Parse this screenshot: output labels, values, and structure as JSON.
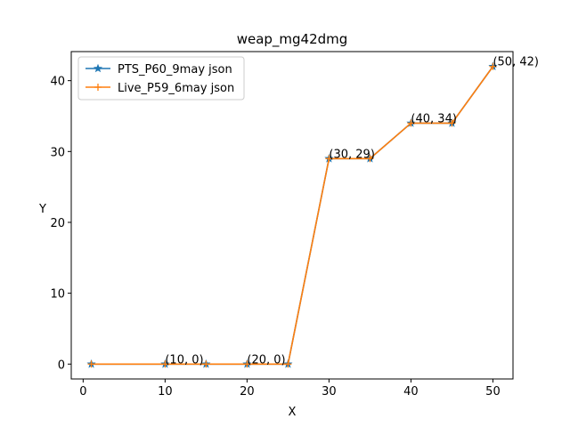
{
  "chart_data": {
    "type": "line",
    "title": "weap_mg42dmg",
    "xlabel": "X",
    "ylabel": "Y",
    "xlim": [
      -1.45,
      52.45
    ],
    "ylim": [
      -2.1,
      44.1
    ],
    "xticks": [
      0,
      10,
      20,
      30,
      40,
      50
    ],
    "yticks": [
      0,
      10,
      20,
      30,
      40
    ],
    "grid": false,
    "legend_position": "top-left",
    "series": [
      {
        "name": "PTS_P60_9may json",
        "color": "#1f77b4",
        "marker": "star",
        "x": [
          1,
          10,
          15,
          20,
          25,
          30,
          35,
          40,
          45,
          50
        ],
        "y": [
          0,
          0,
          0,
          0,
          0,
          29,
          29,
          34,
          34,
          42
        ]
      },
      {
        "name": "Live_P59_6may json",
        "color": "#ff7f0e",
        "marker": "plus",
        "x": [
          1,
          10,
          15,
          20,
          25,
          30,
          35,
          40,
          45,
          50
        ],
        "y": [
          0,
          0,
          0,
          0,
          0,
          29,
          29,
          34,
          34,
          42
        ]
      }
    ],
    "annotations": [
      {
        "x": 10,
        "y": 0,
        "text": "(10, 0)"
      },
      {
        "x": 20,
        "y": 0,
        "text": "(20, 0)"
      },
      {
        "x": 30,
        "y": 29,
        "text": "(30, 29)"
      },
      {
        "x": 40,
        "y": 34,
        "text": "(40, 34)"
      },
      {
        "x": 50,
        "y": 42,
        "text": "(50, 42)"
      }
    ]
  }
}
